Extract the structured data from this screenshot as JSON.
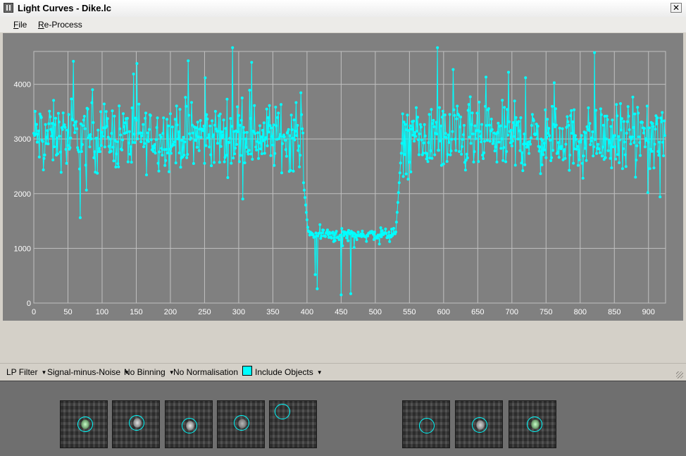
{
  "window": {
    "title": "Light Curves - Dike.lc",
    "close_glyph": "✕",
    "icon": "app-icon"
  },
  "menu": {
    "items": [
      "File",
      "Re-Process"
    ]
  },
  "chart_data": {
    "type": "line",
    "title": "",
    "xlabel": "",
    "ylabel": "",
    "xlim": [
      0,
      925
    ],
    "ylim": [
      0,
      4600
    ],
    "x_ticks": [
      0,
      50,
      100,
      150,
      200,
      250,
      300,
      350,
      400,
      450,
      500,
      550,
      600,
      650,
      700,
      750,
      800,
      850,
      900
    ],
    "y_ticks": [
      0,
      1000,
      2000,
      3000,
      4000
    ],
    "grid": true,
    "series": [
      {
        "color": "#00ffff",
        "segments": [
          {
            "x_start": 0,
            "x_end": 395,
            "mean": 3050,
            "spread": 550
          },
          {
            "x_start": 395,
            "x_end": 402,
            "from": 2200,
            "to": 1250
          },
          {
            "x_start": 402,
            "x_end": 530,
            "mean": 1250,
            "spread": 110
          },
          {
            "x_start": 530,
            "x_end": 540,
            "from": 1300,
            "to": 3100
          },
          {
            "x_start": 540,
            "x_end": 925,
            "mean": 3000,
            "spread": 550
          }
        ],
        "notable_points": [
          {
            "x": 58,
            "y": 4420
          },
          {
            "x": 68,
            "y": 1560
          },
          {
            "x": 151,
            "y": 4380
          },
          {
            "x": 226,
            "y": 4430
          },
          {
            "x": 291,
            "y": 4670
          },
          {
            "x": 319,
            "y": 4400
          },
          {
            "x": 412,
            "y": 520
          },
          {
            "x": 415,
            "y": 260
          },
          {
            "x": 450,
            "y": 150
          },
          {
            "x": 464,
            "y": 170
          },
          {
            "x": 591,
            "y": 4670
          },
          {
            "x": 614,
            "y": 4270
          },
          {
            "x": 695,
            "y": 4220
          },
          {
            "x": 720,
            "y": 4120
          },
          {
            "x": 821,
            "y": 4580
          },
          {
            "x": 917,
            "y": 1940
          },
          {
            "x": 899,
            "y": 2020
          }
        ]
      }
    ],
    "plot_background": "#808080",
    "grid_color": "#c0c0c0"
  },
  "toolbar": {
    "lp_filter": "LP Filter",
    "mode": "Signal-minus-Noise",
    "binning": "No Binning",
    "normalisation": "No Normalisation",
    "include_objects": "Include Objects",
    "caret": "▼",
    "swatch_color": "#00ffff"
  },
  "thumbnails": {
    "left_group_count": 5,
    "right_group_count": 3,
    "ring_color": "#00ffff"
  }
}
